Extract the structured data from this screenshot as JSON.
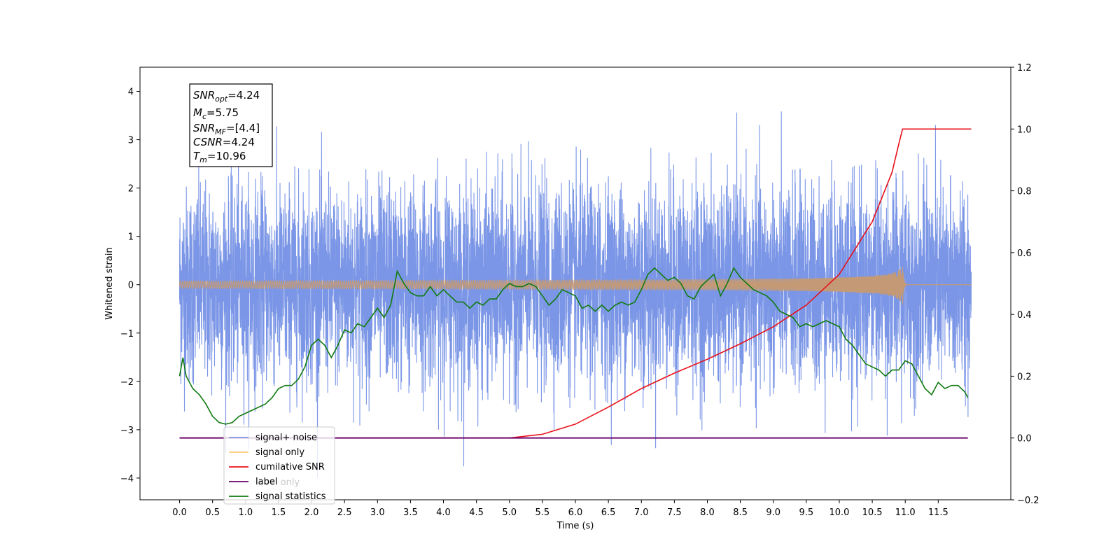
{
  "chart_data": {
    "type": "line",
    "xlabel": "Time (s)",
    "ylabel": "Whitened strain",
    "xlim": [
      -0.6,
      12.6
    ],
    "ylim": [
      -4.45,
      4.5
    ],
    "y2lim": [
      -0.2,
      1.2
    ],
    "x_ticks": [
      "0.0",
      "0.5",
      "1.0",
      "1.5",
      "2.0",
      "2.5",
      "3.0",
      "3.5",
      "4.0",
      "4.5",
      "5.0",
      "5.5",
      "6.0",
      "6.5",
      "7.0",
      "7.5",
      "8.0",
      "8.5",
      "9.0",
      "9.5",
      "10.0",
      "10.5",
      "11.0",
      "11.5"
    ],
    "y_ticks": [
      "−4",
      "−3",
      "−2",
      "−1",
      "0",
      "1",
      "2",
      "3",
      "4"
    ],
    "y2_ticks": [
      "−0.2",
      "0.0",
      "0.2",
      "0.4",
      "0.6",
      "0.8",
      "1.0",
      "1.2"
    ],
    "annotation": {
      "snr_opt": {
        "name": "SNR",
        "sub": "opt",
        "value": "=4.24"
      },
      "mc": {
        "name": "M",
        "sub": "c",
        "value": "=5.75"
      },
      "snr_mf": {
        "name": "SNR",
        "sub": "MF",
        "value": "=[4.4]"
      },
      "csnr": {
        "name": "CSNR",
        "value": "=4.24"
      },
      "tm": {
        "name": "T",
        "sub": "m",
        "value": "=10.96"
      }
    },
    "series": [
      {
        "name": "signal+ noise",
        "color": "#7b96e6",
        "axis": "left",
        "noise_sigma": 1.0,
        "x_range": [
          0.0,
          12.0
        ],
        "sample_rate": 500
      },
      {
        "name": "signal only",
        "color": "#c49a76",
        "axis": "left",
        "merger_time": 10.96,
        "peak_amplitude": 0.45,
        "x_range": [
          0.0,
          12.0
        ]
      },
      {
        "name": "cumilative SNR",
        "color": "#e8111a",
        "axis": "right",
        "x": [
          0.0,
          5.0,
          5.5,
          6.0,
          6.5,
          7.0,
          7.5,
          8.0,
          8.5,
          9.0,
          9.5,
          10.0,
          10.5,
          10.8,
          10.9,
          10.96,
          12.0
        ],
        "values": [
          0.0,
          0.0,
          0.012,
          0.045,
          0.1,
          0.16,
          0.21,
          0.255,
          0.305,
          0.36,
          0.43,
          0.53,
          0.7,
          0.86,
          0.95,
          1.0,
          1.0
        ]
      },
      {
        "name": "label",
        "color": "#6a006a",
        "axis": "right",
        "x": [
          0.0,
          11.95
        ],
        "values": [
          0.0,
          0.0
        ]
      },
      {
        "name": "label only",
        "color": "#c8a0c8",
        "axis": "right",
        "legend_only": true
      },
      {
        "name": "signal statistics",
        "color": "#117a11",
        "axis": "right",
        "x": [
          0.0,
          0.05,
          0.1,
          0.2,
          0.3,
          0.4,
          0.5,
          0.6,
          0.7,
          0.8,
          0.9,
          1.0,
          1.1,
          1.2,
          1.3,
          1.4,
          1.5,
          1.6,
          1.7,
          1.8,
          1.9,
          2.0,
          2.1,
          2.2,
          2.3,
          2.4,
          2.5,
          2.6,
          2.7,
          2.8,
          2.9,
          3.0,
          3.1,
          3.2,
          3.3,
          3.4,
          3.5,
          3.6,
          3.7,
          3.8,
          3.9,
          4.0,
          4.1,
          4.2,
          4.3,
          4.4,
          4.5,
          4.6,
          4.7,
          4.8,
          4.9,
          5.0,
          5.1,
          5.2,
          5.3,
          5.4,
          5.5,
          5.6,
          5.7,
          5.8,
          5.9,
          6.0,
          6.1,
          6.2,
          6.3,
          6.4,
          6.5,
          6.6,
          6.7,
          6.8,
          6.9,
          7.0,
          7.1,
          7.2,
          7.3,
          7.4,
          7.5,
          7.6,
          7.7,
          7.8,
          7.9,
          8.0,
          8.1,
          8.2,
          8.3,
          8.4,
          8.5,
          8.6,
          8.7,
          8.8,
          8.9,
          9.0,
          9.1,
          9.2,
          9.3,
          9.4,
          9.5,
          9.6,
          9.7,
          9.8,
          9.9,
          10.0,
          10.1,
          10.2,
          10.3,
          10.4,
          10.5,
          10.6,
          10.7,
          10.8,
          10.9,
          11.0,
          11.1,
          11.2,
          11.3,
          11.4,
          11.5,
          11.6,
          11.7,
          11.8,
          11.9,
          11.95
        ],
        "values": [
          0.2,
          0.26,
          0.2,
          0.16,
          0.14,
          0.11,
          0.07,
          0.05,
          0.045,
          0.05,
          0.07,
          0.08,
          0.09,
          0.1,
          0.11,
          0.13,
          0.16,
          0.17,
          0.17,
          0.19,
          0.23,
          0.3,
          0.32,
          0.3,
          0.26,
          0.3,
          0.35,
          0.34,
          0.37,
          0.36,
          0.39,
          0.42,
          0.39,
          0.43,
          0.54,
          0.5,
          0.47,
          0.46,
          0.46,
          0.49,
          0.46,
          0.48,
          0.46,
          0.44,
          0.44,
          0.42,
          0.44,
          0.43,
          0.45,
          0.45,
          0.48,
          0.5,
          0.49,
          0.49,
          0.5,
          0.49,
          0.46,
          0.43,
          0.45,
          0.48,
          0.47,
          0.46,
          0.42,
          0.43,
          0.41,
          0.43,
          0.41,
          0.43,
          0.44,
          0.43,
          0.44,
          0.48,
          0.53,
          0.55,
          0.53,
          0.51,
          0.52,
          0.5,
          0.46,
          0.45,
          0.49,
          0.51,
          0.53,
          0.46,
          0.5,
          0.55,
          0.52,
          0.5,
          0.48,
          0.47,
          0.46,
          0.44,
          0.41,
          0.4,
          0.39,
          0.36,
          0.37,
          0.36,
          0.37,
          0.38,
          0.37,
          0.36,
          0.32,
          0.3,
          0.27,
          0.24,
          0.23,
          0.22,
          0.2,
          0.22,
          0.22,
          0.25,
          0.24,
          0.2,
          0.16,
          0.14,
          0.18,
          0.16,
          0.17,
          0.17,
          0.15,
          0.13
        ]
      }
    ],
    "legend_placement": "lower-left",
    "grid": false
  }
}
